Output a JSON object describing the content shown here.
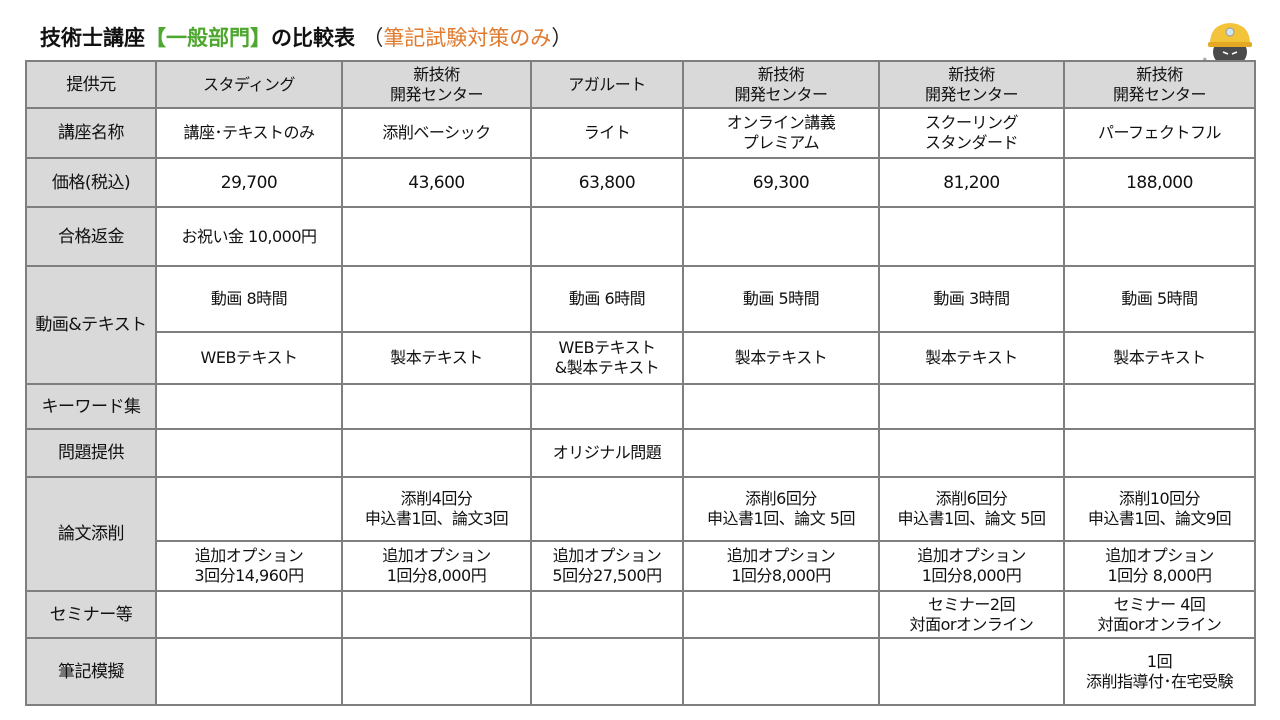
{
  "title": {
    "main": "技術士講座",
    "highlight": "【一般部門】",
    "after": "の比較表",
    "paren_open": "（",
    "sub": "筆記試験対策のみ",
    "paren_close": "）"
  },
  "mascot": {
    "icon": "helmet-cat-mascot-icon"
  },
  "colors": {
    "header_bg": "#d9d9d9",
    "green": "#4ea72e",
    "orange": "#e07a2e",
    "border": "#7f7f7f"
  },
  "table": {
    "header": {
      "label": "提供元",
      "providers": [
        "スタディング",
        "新技術\n開発センター",
        "アガルート",
        "新技術\n開発センター",
        "新技術\n開発センター",
        "新技術\n開発センター"
      ]
    },
    "rows": [
      {
        "label": "講座名称",
        "cells": [
          [
            "講座･テキストのみ",
            "添削ベーシック",
            "ライト",
            "オンライン講義\nプレミアム",
            "スクーリング\nスタンダード",
            "パーフェクトフル"
          ]
        ]
      },
      {
        "label": "価格(税込)",
        "big": true,
        "cells": [
          [
            "29,700",
            "43,600",
            "63,800",
            "69,300",
            "81,200",
            "188,000"
          ]
        ]
      },
      {
        "label": "合格返金",
        "cells": [
          [
            "お祝い金  10,000円",
            "",
            "",
            "",
            "",
            ""
          ]
        ]
      },
      {
        "label": "動画&テキスト",
        "cells": [
          [
            "動画  8時間",
            "",
            "動画  6時間",
            "動画   5時間",
            "動画   3時間",
            "動画   5時間"
          ],
          [
            "WEBテキスト",
            "製本テキスト",
            "WEBテキスト\n&製本テキスト",
            "製本テキスト",
            "製本テキスト",
            "製本テキスト"
          ]
        ]
      },
      {
        "label": "キーワード集",
        "cells": [
          [
            "",
            "",
            "",
            "",
            "",
            ""
          ]
        ]
      },
      {
        "label": "問題提供",
        "cells": [
          [
            "",
            "",
            "オリジナル問題",
            "",
            "",
            ""
          ]
        ]
      },
      {
        "label": "論文添削",
        "cells": [
          [
            "",
            "添削4回分\n申込書1回、論文3回",
            "",
            "添削6回分\n申込書1回、論文 5回",
            "添削6回分\n申込書1回、論文 5回",
            "添削10回分\n申込書1回、論文9回"
          ],
          [
            "追加オプション\n3回分14,960円",
            "追加オプション\n1回分8,000円",
            "追加オプション\n5回分27,500円",
            "追加オプション\n1回分8,000円",
            "追加オプション\n1回分8,000円",
            "追加オプション\n1回分  8,000円"
          ]
        ]
      },
      {
        "label": "セミナー等",
        "cells": [
          [
            "",
            "",
            "",
            "",
            "セミナー2回\n対面orオンライン",
            "セミナー 4回\n対面orオンライン"
          ]
        ]
      },
      {
        "label": "筆記模擬",
        "cells": [
          [
            "",
            "",
            "",
            "",
            "",
            "1回\n添削指導付･在宅受験"
          ]
        ]
      }
    ]
  }
}
